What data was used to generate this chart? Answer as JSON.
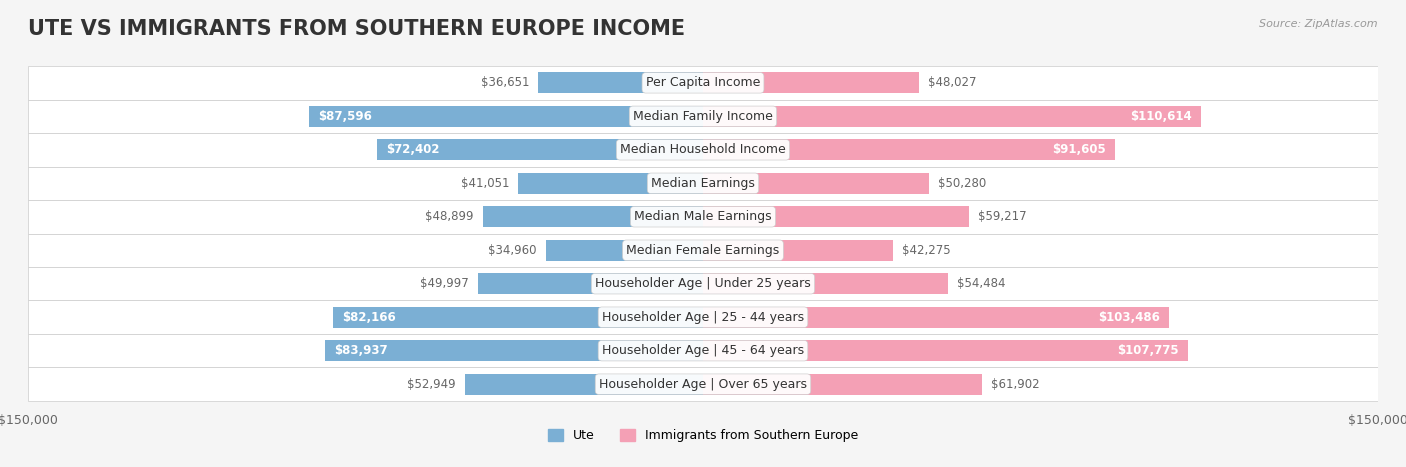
{
  "title": "UTE VS IMMIGRANTS FROM SOUTHERN EUROPE INCOME",
  "source": "Source: ZipAtlas.com",
  "categories": [
    "Per Capita Income",
    "Median Family Income",
    "Median Household Income",
    "Median Earnings",
    "Median Male Earnings",
    "Median Female Earnings",
    "Householder Age | Under 25 years",
    "Householder Age | 25 - 44 years",
    "Householder Age | 45 - 64 years",
    "Householder Age | Over 65 years"
  ],
  "ute_values": [
    36651,
    87596,
    72402,
    41051,
    48899,
    34960,
    49997,
    82166,
    83937,
    52949
  ],
  "immigrant_values": [
    48027,
    110614,
    91605,
    50280,
    59217,
    42275,
    54484,
    103486,
    107775,
    61902
  ],
  "ute_color": "#7bafd4",
  "immigrant_color": "#f4a0b5",
  "ute_label": "Ute",
  "immigrant_label": "Immigrants from Southern Europe",
  "max_value": 150000,
  "background_color": "#f5f5f5",
  "bar_background": "#ffffff",
  "title_fontsize": 15,
  "label_fontsize": 9,
  "value_fontsize": 8.5
}
